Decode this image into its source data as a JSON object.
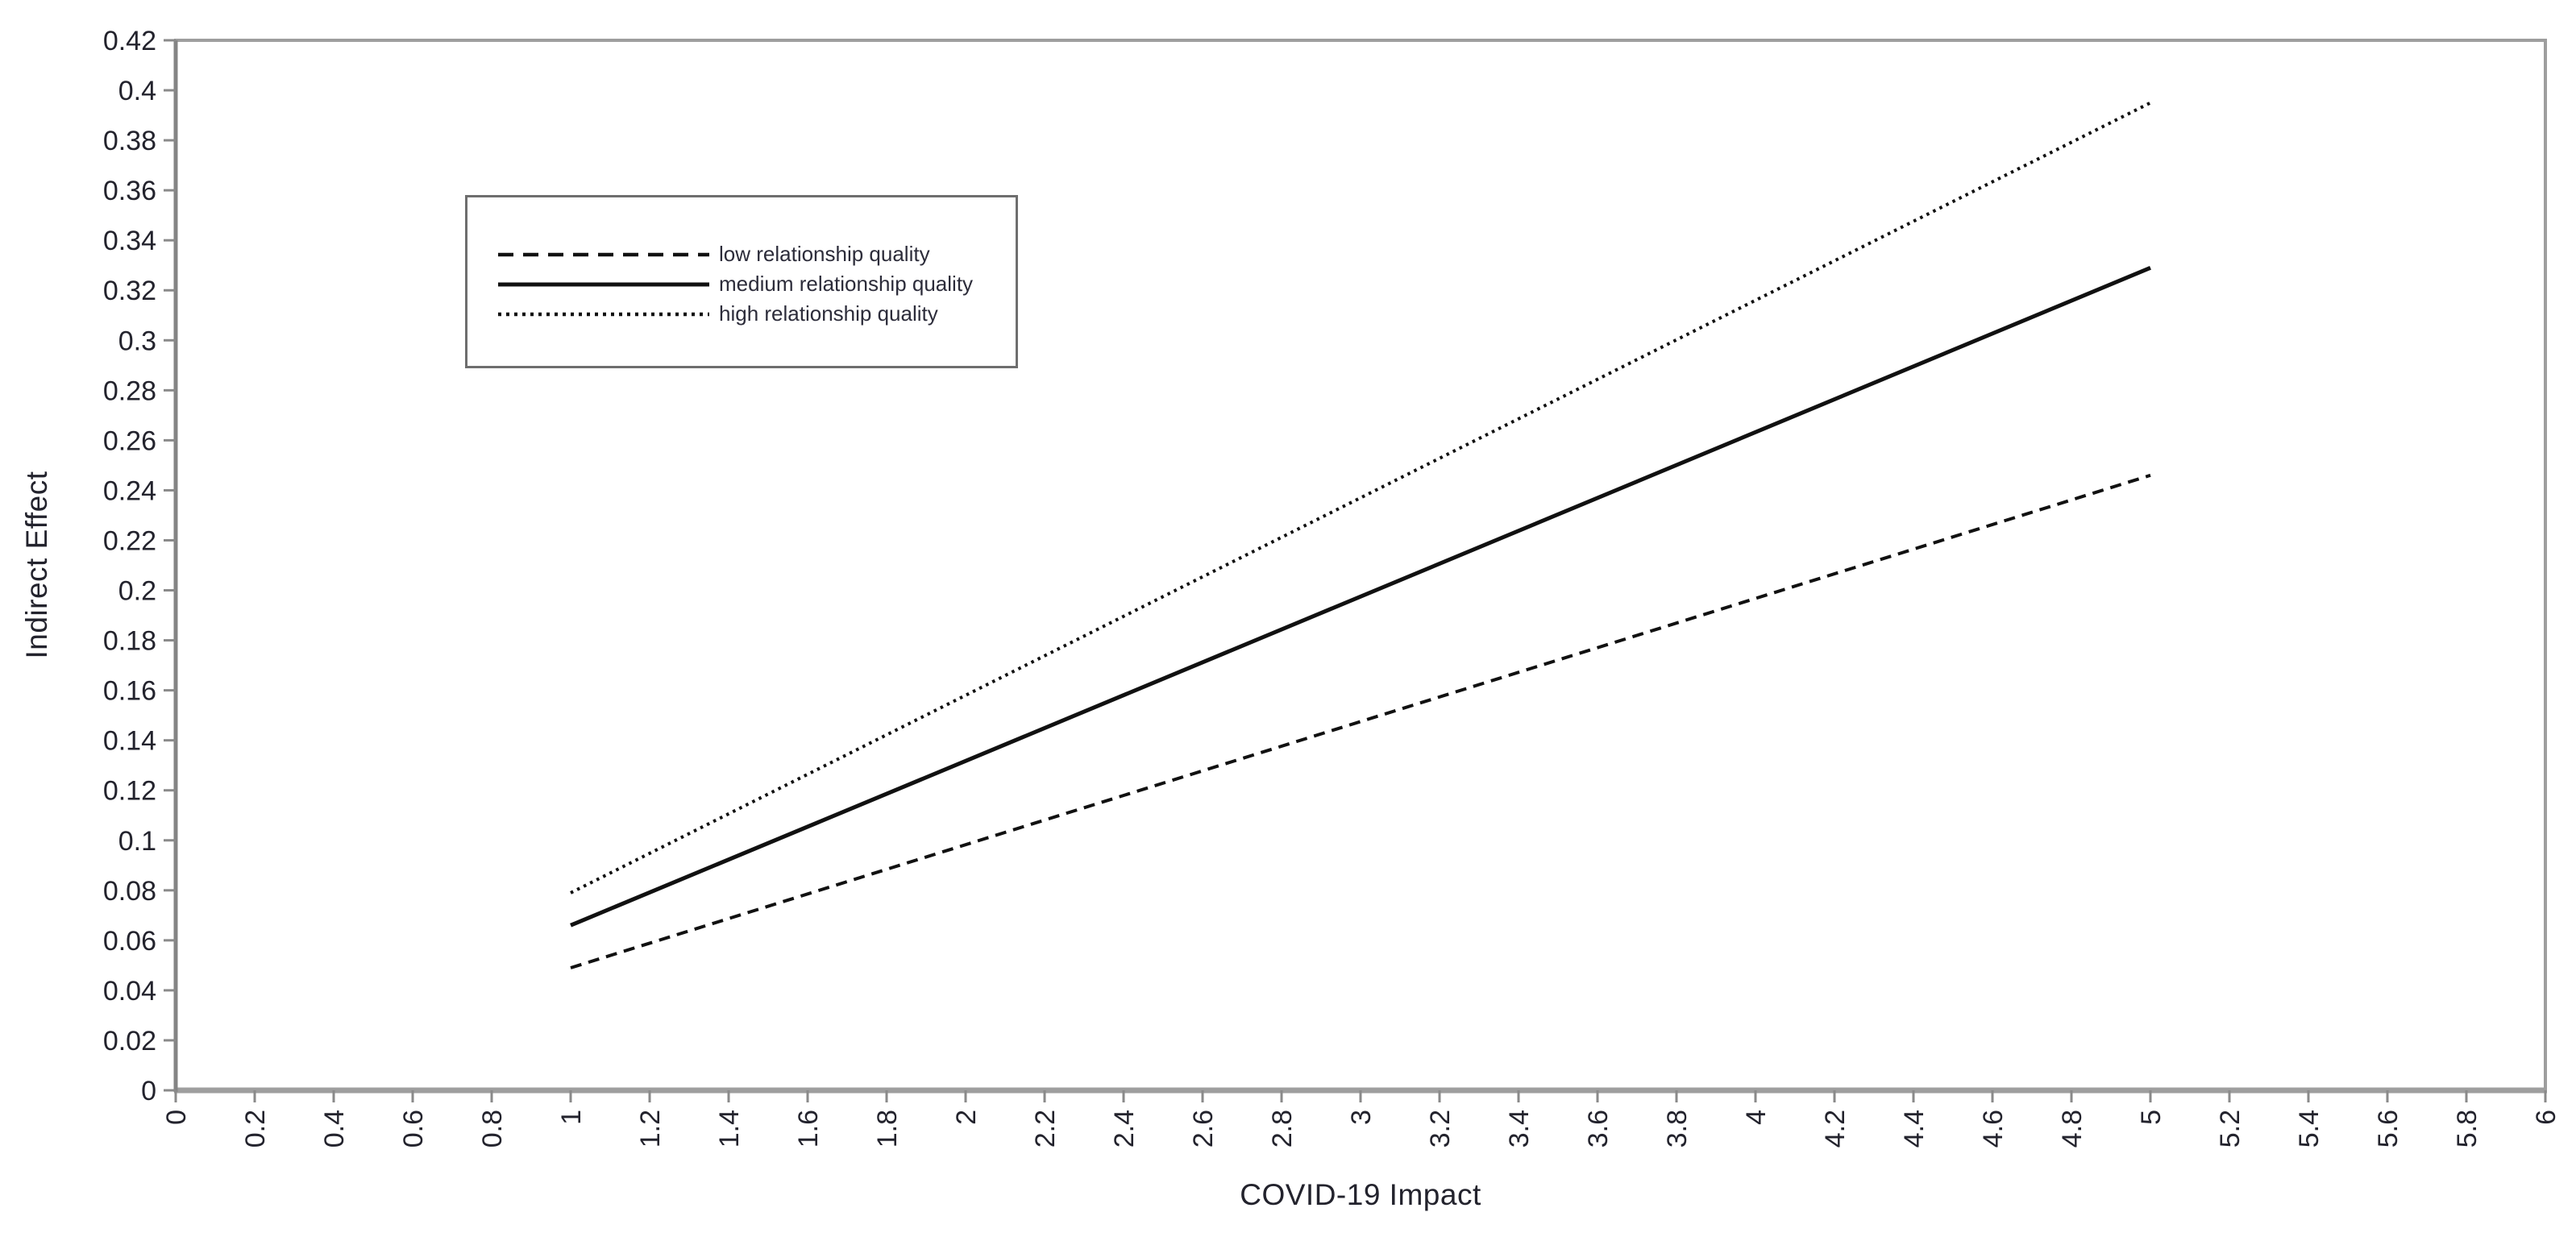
{
  "chart_data": {
    "type": "line",
    "title": "",
    "xlabel": "COVID-19 Impact",
    "ylabel": "Indirect Effect",
    "xlim": [
      0,
      6
    ],
    "ylim": [
      0,
      0.42
    ],
    "x_tick_step": 0.2,
    "y_tick_step": 0.02,
    "grid": false,
    "frame": true,
    "legend_position": "upper-left-inside",
    "line_color": "#111111",
    "frame_color": "#9e9e9e",
    "tick_color": "#8a8a8a",
    "tick_label_color": "#23232d",
    "series": [
      {
        "name": "low relationship quality",
        "style": "dashed",
        "x": [
          1,
          5
        ],
        "values": [
          0.049,
          0.246
        ]
      },
      {
        "name": "medium relationship quality",
        "style": "solid",
        "x": [
          1,
          5
        ],
        "values": [
          0.066,
          0.329
        ]
      },
      {
        "name": "high relationship quality",
        "style": "dotted",
        "x": [
          1,
          5
        ],
        "values": [
          0.079,
          0.395
        ]
      }
    ]
  }
}
